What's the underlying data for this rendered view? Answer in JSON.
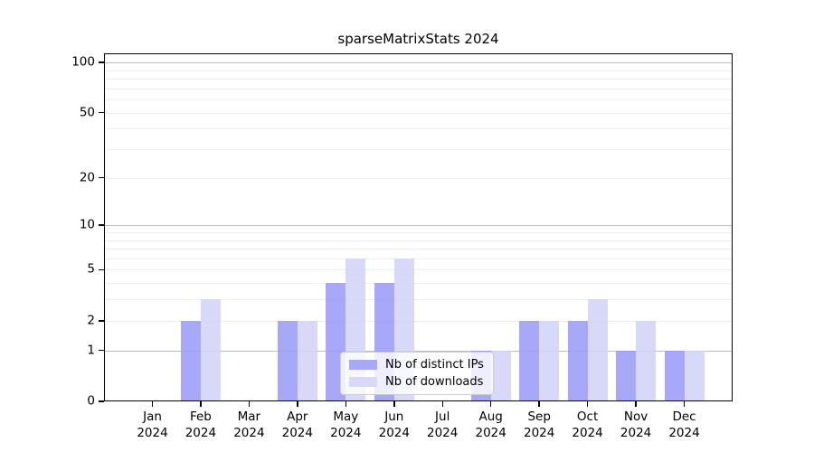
{
  "chart_data": {
    "type": "bar",
    "title": "sparseMatrixStats 2024",
    "categories": [
      "Jan",
      "Feb",
      "Mar",
      "Apr",
      "May",
      "Jun",
      "Jul",
      "Aug",
      "Sep",
      "Oct",
      "Nov",
      "Dec"
    ],
    "year_label": "2024",
    "series": [
      {
        "name": "Nb of distinct IPs",
        "color": "#a8a8f8",
        "values": [
          0,
          2,
          0,
          2,
          4,
          4,
          0,
          1,
          2,
          2,
          1,
          1
        ]
      },
      {
        "name": "Nb of downloads",
        "color": "#d8d8f8",
        "values": [
          0,
          3,
          0,
          2,
          6,
          6,
          0,
          1,
          2,
          3,
          2,
          1
        ]
      }
    ],
    "y_axis": {
      "scale": "log1p",
      "tick_labels": [
        0,
        1,
        2,
        5,
        10,
        20,
        50,
        100
      ],
      "major_gridlines": [
        1,
        10,
        100
      ],
      "minor_gridlines": [
        2,
        3,
        4,
        5,
        6,
        7,
        8,
        9,
        20,
        30,
        40,
        50,
        60,
        70,
        80,
        90
      ],
      "value_at_top": 113.2,
      "ylim": [
        0,
        113.2
      ]
    },
    "legend": {
      "position": "lower center"
    },
    "style": {
      "bar_fill_ips": "rgba(153,153,247,0.85)",
      "bar_fill_downloads": "rgba(209,209,247,0.85)",
      "grid_minor_color": "#ececec",
      "grid_major_color": "#bdbdbd",
      "spine_color": "#000000"
    }
  }
}
